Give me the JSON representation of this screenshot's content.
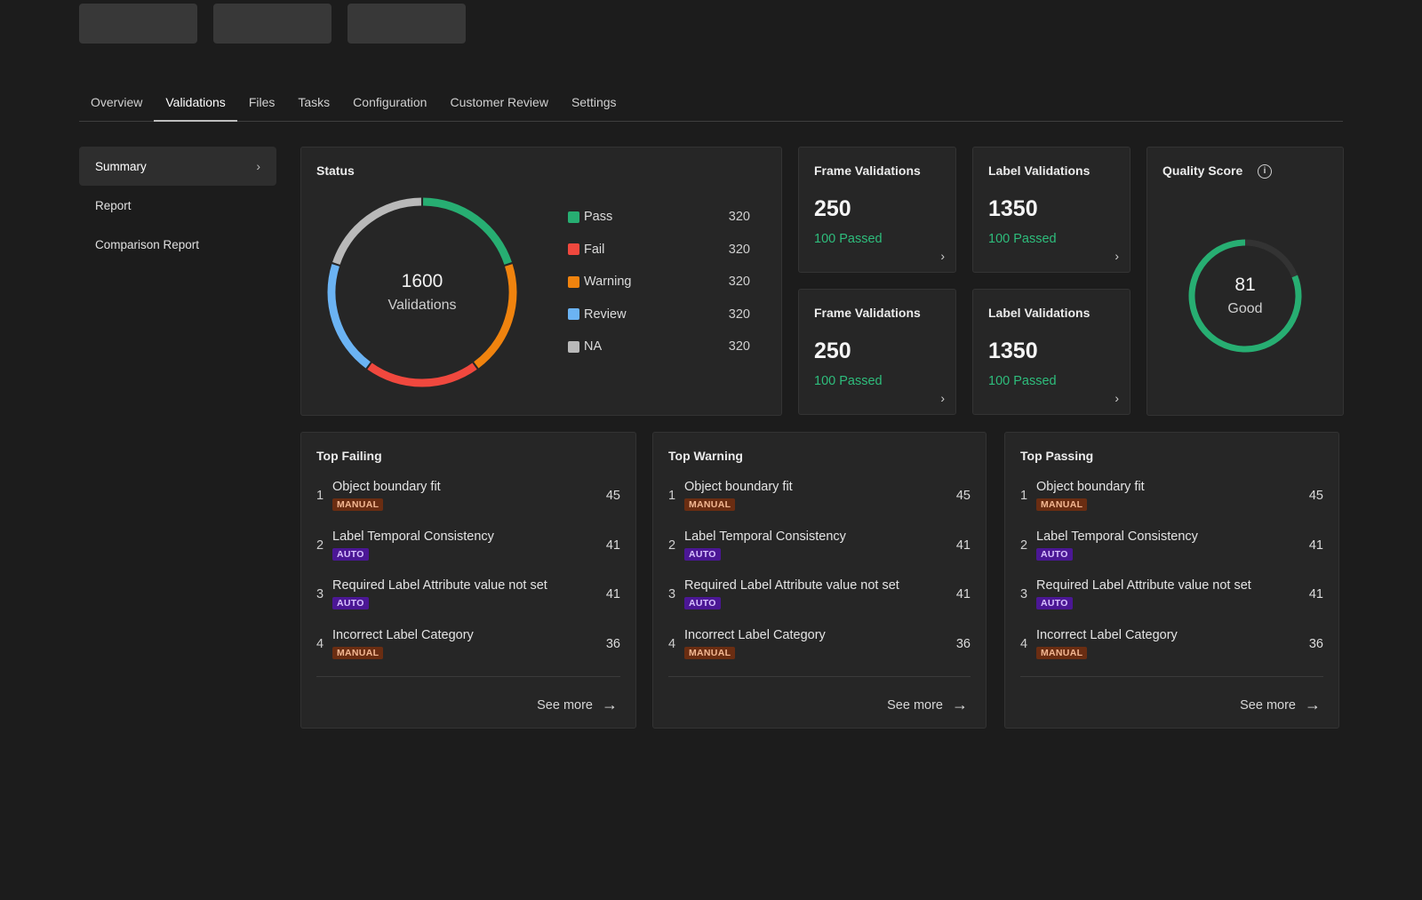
{
  "tabs": [
    "Overview",
    "Validations",
    "Files",
    "Tasks",
    "Configuration",
    "Customer Review",
    "Settings"
  ],
  "active_tab": "Validations",
  "sidebar": {
    "items": [
      {
        "label": "Summary",
        "active": true
      },
      {
        "label": "Report"
      },
      {
        "label": "Comparison Report"
      }
    ],
    "chevron_icon": "chevron-right-icon"
  },
  "status": {
    "title": "Status",
    "total": "1600",
    "total_label": "Validations",
    "legend": [
      {
        "name": "Pass",
        "value": 320,
        "color": "#27ae72"
      },
      {
        "name": "Fail",
        "value": 320,
        "color": "#f0483e"
      },
      {
        "name": "Warning",
        "value": 320,
        "color": "#f0830e"
      },
      {
        "name": "Review",
        "value": 320,
        "color": "#6bb3f3"
      },
      {
        "name": "NA",
        "value": 320,
        "color": "#b9b9b9"
      }
    ]
  },
  "metrics": [
    {
      "title": "Frame Validations",
      "value": "250",
      "sub": "100 Passed"
    },
    {
      "title": "Label Validations",
      "value": "1350",
      "sub": "100 Passed"
    },
    {
      "title": "Frame Validations",
      "value": "250",
      "sub": "100 Passed"
    },
    {
      "title": "Label Validations",
      "value": "1350",
      "sub": "100 Passed"
    }
  ],
  "quality": {
    "title": "Quality Score",
    "score": "81",
    "score_label": "Good",
    "fraction": 0.81,
    "color": "#27ae72",
    "track_color": "#333333",
    "info_icon": "info-icon"
  },
  "lists": [
    {
      "title": "Top Failing",
      "see_more": "See more",
      "items": [
        {
          "rank": "1",
          "name": "Object boundary fit",
          "tag": "MANUAL",
          "count": "45"
        },
        {
          "rank": "2",
          "name": "Label Temporal Consistency",
          "tag": "AUTO",
          "count": "41"
        },
        {
          "rank": "3",
          "name": "Required Label Attribute value not set",
          "tag": "AUTO",
          "count": "41"
        },
        {
          "rank": "4",
          "name": "Incorrect Label Category",
          "tag": "MANUAL",
          "count": "36"
        }
      ]
    },
    {
      "title": "Top Warning",
      "see_more": "See more",
      "items": [
        {
          "rank": "1",
          "name": "Object boundary fit",
          "tag": "MANUAL",
          "count": "45"
        },
        {
          "rank": "2",
          "name": "Label Temporal Consistency",
          "tag": "AUTO",
          "count": "41"
        },
        {
          "rank": "3",
          "name": "Required Label Attribute value not set",
          "tag": "AUTO",
          "count": "41"
        },
        {
          "rank": "4",
          "name": "Incorrect Label Category",
          "tag": "MANUAL",
          "count": "36"
        }
      ]
    },
    {
      "title": "Top Passing",
      "see_more": "See more",
      "items": [
        {
          "rank": "1",
          "name": "Object boundary fit",
          "tag": "MANUAL",
          "count": "45"
        },
        {
          "rank": "2",
          "name": "Label Temporal Consistency",
          "tag": "AUTO",
          "count": "41"
        },
        {
          "rank": "3",
          "name": "Required Label Attribute value not set",
          "tag": "AUTO",
          "count": "41"
        },
        {
          "rank": "4",
          "name": "Incorrect Label Category",
          "tag": "MANUAL",
          "count": "36"
        }
      ]
    }
  ]
}
